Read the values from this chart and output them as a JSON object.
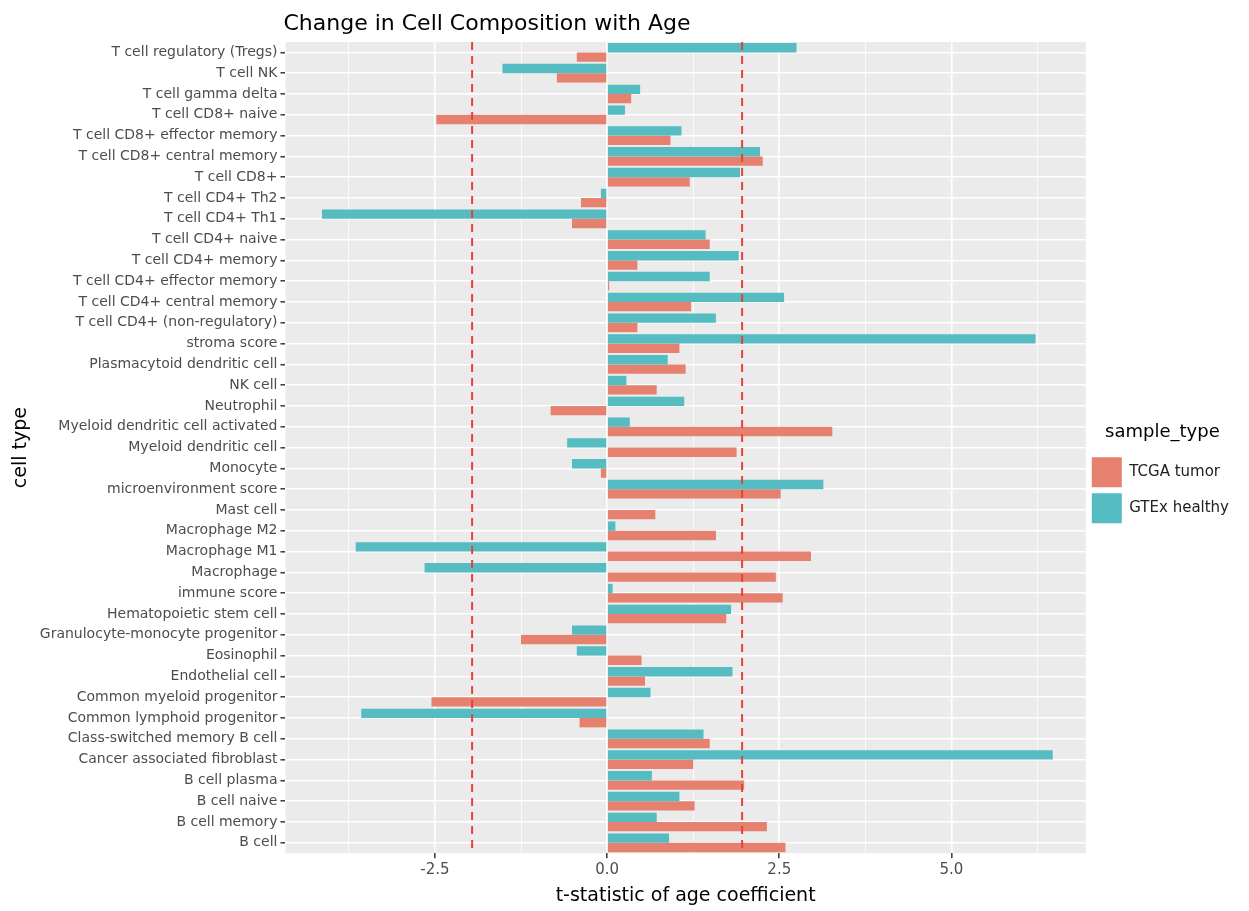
{
  "chart_data": {
    "type": "bar",
    "orientation": "horizontal",
    "title": "Change in Cell Composition with Age",
    "xlabel": "t-statistic of age coefficient",
    "ylabel": "cell type",
    "legend_title": "sample_type",
    "legend": "right",
    "grid": true,
    "categories": [
      "T cell regulatory (Tregs)",
      "T cell NK",
      "T cell gamma delta",
      "T cell CD8+ naive",
      "T cell CD8+ effector memory",
      "T cell CD8+ central memory",
      "T cell CD8+",
      "T cell CD4+ Th2",
      "T cell CD4+ Th1",
      "T cell CD4+ naive",
      "T cell CD4+ memory",
      "T cell CD4+ effector memory",
      "T cell CD4+ central memory",
      "T cell CD4+ (non-regulatory)",
      "stroma score",
      "Plasmacytoid dendritic cell",
      "NK cell",
      "Neutrophil",
      "Myeloid dendritic cell activated",
      "Myeloid dendritic cell",
      "Monocyte",
      "microenvironment score",
      "Mast cell",
      "Macrophage M2",
      "Macrophage M1",
      "Macrophage",
      "immune score",
      "Hematopoietic stem cell",
      "Granulocyte-monocyte progenitor",
      "Eosinophil",
      "Endothelial cell",
      "Common myeloid progenitor",
      "Common lymphoid progenitor",
      "Class-switched memory B cell",
      "Cancer associated fibroblast",
      "B cell plasma",
      "B cell naive",
      "B cell memory",
      "B cell"
    ],
    "series": [
      {
        "name": "TCGA tumor",
        "color": "#e6806f",
        "values": [
          -0.44,
          -0.73,
          0.35,
          -2.48,
          0.92,
          2.26,
          1.2,
          -0.38,
          -0.51,
          1.49,
          0.44,
          0.03,
          1.22,
          0.44,
          1.05,
          1.14,
          0.72,
          -0.82,
          3.27,
          1.88,
          -0.09,
          2.52,
          0.7,
          1.58,
          2.96,
          2.45,
          2.55,
          1.73,
          -1.25,
          0.5,
          0.55,
          -2.55,
          -0.4,
          1.49,
          1.25,
          1.99,
          1.27,
          2.32,
          2.59
        ]
      },
      {
        "name": "GTEx healthy",
        "color": "#55bcc2",
        "values": [
          2.75,
          -1.52,
          0.48,
          0.26,
          1.08,
          2.22,
          1.93,
          -0.09,
          -4.14,
          1.43,
          1.91,
          1.49,
          2.57,
          1.58,
          6.22,
          0.88,
          0.28,
          1.12,
          0.33,
          -0.58,
          -0.51,
          3.14,
          null,
          0.12,
          -3.65,
          -2.65,
          0.08,
          1.8,
          -0.51,
          -0.44,
          1.82,
          0.63,
          -3.57,
          1.4,
          6.47,
          0.65,
          1.05,
          0.72,
          0.9
        ]
      }
    ],
    "xlim": [
      -4.67,
      6.95
    ],
    "xticks": [
      {
        "value": -3.75,
        "label": null
      },
      {
        "value": -2.5,
        "label": "-2.5"
      },
      {
        "value": -1.25,
        "label": null
      },
      {
        "value": 0,
        "label": "0.0"
      },
      {
        "value": 1.25,
        "label": null
      },
      {
        "value": 2.5,
        "label": "2.5"
      },
      {
        "value": 3.75,
        "label": null
      },
      {
        "value": 5,
        "label": "5.0"
      },
      {
        "value": 6.25,
        "label": null
      }
    ],
    "ref_lines": [
      {
        "axis": "x",
        "value": -1.96,
        "color": "#e8413a",
        "line_style": "dashed"
      },
      {
        "axis": "x",
        "value": 1.96,
        "color": "#e8413a",
        "line_style": "dashed"
      }
    ]
  }
}
